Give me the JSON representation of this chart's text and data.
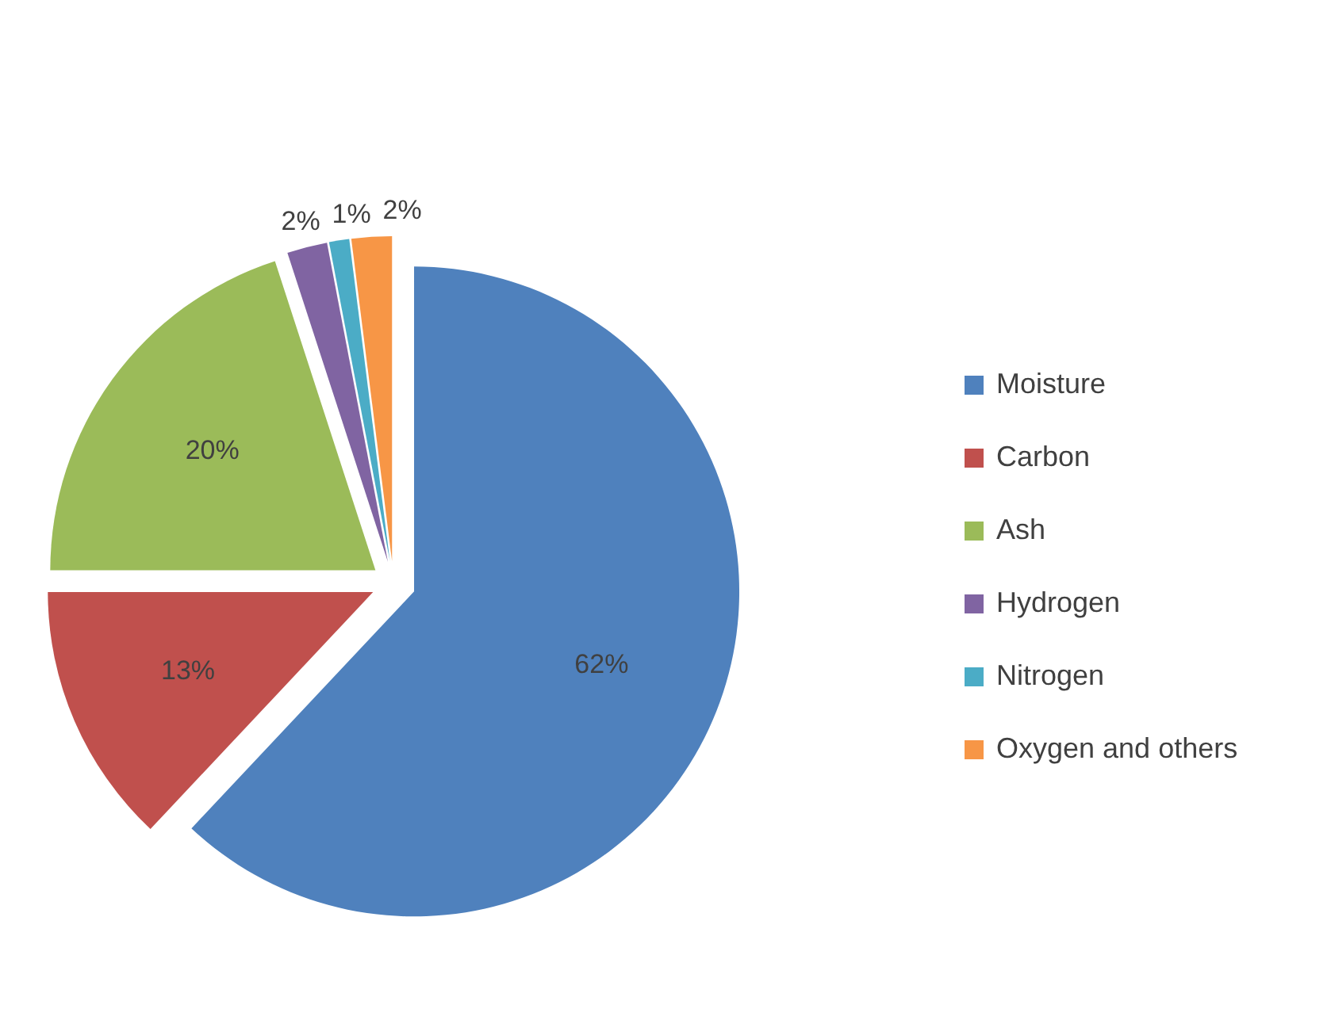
{
  "chart_data": {
    "type": "pie",
    "categories": [
      "Moisture",
      "Carbon",
      "Ash",
      "Hydrogen",
      "Nitrogen",
      "Oxygen and others"
    ],
    "values": [
      62,
      13,
      20,
      2,
      1,
      2
    ],
    "colors": [
      "#4f81bd",
      "#c0504d",
      "#9bbb59",
      "#8064a2",
      "#4bacc6",
      "#f79646"
    ],
    "value_labels": [
      "62%",
      "13%",
      "20%",
      "2%",
      "1%",
      "2%"
    ],
    "legend": "right"
  }
}
